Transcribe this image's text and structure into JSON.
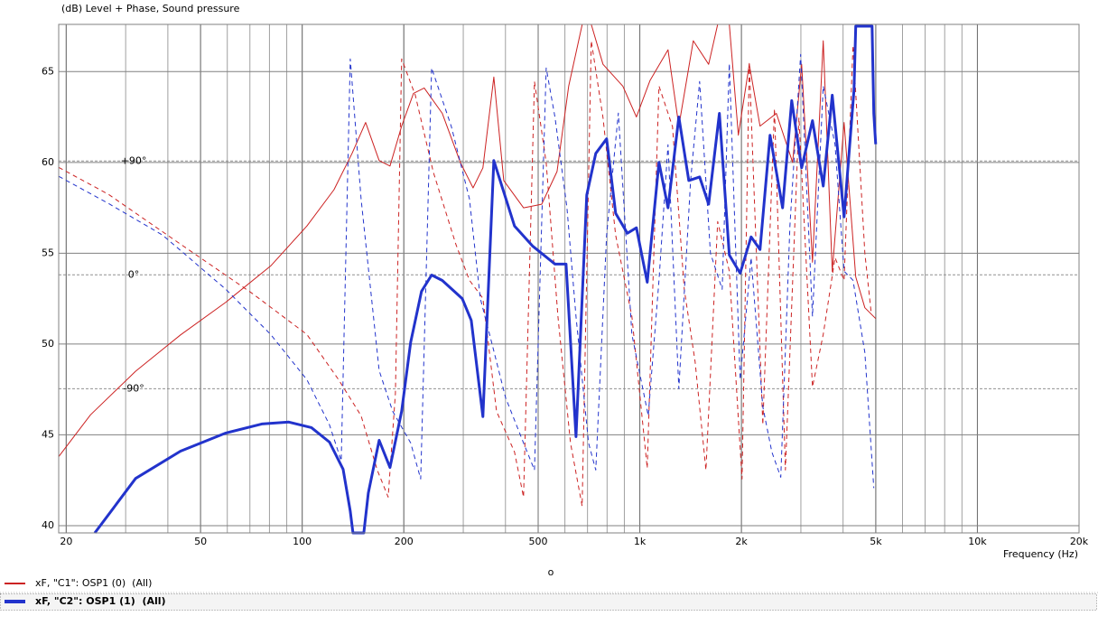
{
  "chart_data": {
    "type": "line",
    "title": "(dB)  Level + Phase, Sound pressure",
    "x_label": "Frequency  (Hz)",
    "footer_mark": "o",
    "x_scale": "log",
    "grid": true,
    "xlim": [
      19,
      20000
    ],
    "xticks": [
      20,
      50,
      100,
      200,
      500,
      {
        "value": 1000,
        "label": "1k"
      },
      {
        "value": 2000,
        "label": "2k"
      },
      {
        "value": 5000,
        "label": "5k"
      },
      {
        "value": 10000,
        "label": "10k"
      },
      {
        "value": 20000,
        "label": "20k"
      }
    ],
    "ylim": [
      39.6,
      67.6
    ],
    "yticks": [
      40,
      45,
      50,
      55,
      60,
      65
    ],
    "y2lim": [
      -204,
      198
    ],
    "y2ticks": [
      {
        "value": 90,
        "label": "+90°"
      },
      {
        "value": 0,
        "label": "0°"
      },
      {
        "value": -90,
        "label": "-90°"
      }
    ],
    "series": [
      {
        "name": "xF, \"C1\": OSP1 (0)  (All)",
        "color": "#cc2222",
        "line_width": 1,
        "level": {
          "x": [
            19,
            23.6,
            32.1,
            43.6,
            59.4,
            80.7,
            103.3,
            124.2,
            140.5,
            154.1,
            169,
            182,
            197,
            213.6,
            229.9,
            260,
            294.1,
            320.7,
            343,
            369.6,
            395.4,
            452.6,
            512,
            568.5,
            615.8,
            675.3,
            718,
            778,
            891,
            977,
            1072,
            1212,
            1305,
            1440,
            1599,
            1701,
            1842,
            1959,
            2110,
            2271,
            2538,
            2835,
            3015,
            3247,
            3494,
            3716,
            4028,
            4362,
            4640,
            4997
          ],
          "values": [
            43.8,
            46.1,
            48.5,
            50.5,
            52.3,
            54.3,
            56.5,
            58.5,
            60.5,
            62.2,
            60.1,
            59.8,
            62.0,
            63.8,
            64.1,
            62.7,
            60.0,
            58.6,
            59.7,
            64.7,
            59.0,
            57.5,
            57.7,
            59.5,
            64.2,
            67.6,
            67.6,
            65.4,
            64.2,
            62.5,
            64.5,
            66.2,
            62.0,
            66.7,
            65.4,
            67.6,
            67.6,
            61.5,
            65.4,
            62.0,
            62.7,
            60.0,
            65.4,
            54.5,
            66.7,
            54.0,
            62.2,
            53.7,
            52.0,
            51.4
          ]
        },
        "phase": {
          "axis": "y2",
          "dash": "5,4",
          "x": [
            19,
            26.7,
            43.6,
            71.4,
            103.3,
            128.2,
            149.4,
            166.9,
            179.8,
            188.9,
            197,
            216.2,
            244.5,
            285.2,
            312.9,
            343,
            376.4,
            425.6,
            452.6,
            487.4,
            528,
            572,
            623.4,
            675,
            718,
            778,
            848,
            947.7,
            1052,
            1140,
            1250,
            1354,
            1458,
            1570,
            1701,
            1842,
            2008,
            2110,
            2314,
            2506,
            2699,
            2960,
            3247,
            3494,
            3787,
            4028,
            4282,
            4640,
            4843
          ],
          "values": [
            85.0,
            63.6,
            24.3,
            -15.0,
            -47.1,
            -82.9,
            -111.4,
            -154.3,
            -175.7,
            -93.6,
            170.7,
            142.1,
            81.4,
            24.3,
            -4.3,
            -18.6,
            -107.9,
            -140.0,
            -175.7,
            152.9,
            88.6,
            -32.9,
            -132.9,
            -182.9,
            185.0,
            124.3,
            31.4,
            -32.9,
            -152.9,
            149.3,
            117.1,
            -11.4,
            -68.6,
            -154.3,
            42.1,
            2.9,
            -161.4,
            167.1,
            -118.6,
            131.4,
            -154.3,
            124.3,
            -88.6,
            -47.1,
            13.6,
            -4.3,
            181.4,
            17.1,
            -29.3
          ]
        }
      },
      {
        "name": "xF, \"C2\": OSP1 (1)  (All)",
        "color": "#2233cc",
        "line_width": 3,
        "level": {
          "x": [
            24.3,
            32.1,
            43.6,
            59.4,
            75.9,
            91.3,
            106.5,
            120.5,
            132.2,
            138.8,
            141.4,
            152.2,
            157,
            169,
            182,
            197,
            209.6,
            225.7,
            241.7,
            260,
            297.8,
            316.7,
            343,
            369.6,
            425.6,
            481,
            561,
            604.6,
            647,
            696.5,
            740.6,
            797.6,
            848,
            918.8,
            977,
            1052,
            1140,
            1212,
            1305,
            1397,
            1504,
            1599,
            1721,
            1842,
            1983,
            2136,
            2271,
            2431,
            2649,
            2818,
            3015,
            3247,
            3494,
            3716,
            4028,
            4310,
            4362,
            4875,
            4934,
            4997
          ],
          "values": [
            39.6,
            42.6,
            44.1,
            45.1,
            45.6,
            45.7,
            45.4,
            44.6,
            43.1,
            40.8,
            39.6,
            39.6,
            41.8,
            44.7,
            43.2,
            46.3,
            50.1,
            52.9,
            53.8,
            53.5,
            52.5,
            51.3,
            46.0,
            60.1,
            56.5,
            55.4,
            54.4,
            54.4,
            44.9,
            58.2,
            60.5,
            61.3,
            57.2,
            56.1,
            56.4,
            53.4,
            60.0,
            57.5,
            62.5,
            59.0,
            59.2,
            57.7,
            62.7,
            54.9,
            53.9,
            55.9,
            55.2,
            61.5,
            57.5,
            63.4,
            59.7,
            62.3,
            58.7,
            63.7,
            57.0,
            64.0,
            67.5,
            67.5,
            62.7,
            61.0
          ]
        },
        "phase": {
          "axis": "y2",
          "dash": "5,4",
          "x": [
            19,
            26.7,
            38.6,
            59.4,
            80.7,
            103.3,
            120.5,
            130.5,
            138.8,
            149.4,
            169,
            185.4,
            209.6,
            224.4,
            241.7,
            276.6,
            312.9,
            336.9,
            364.8,
            400.3,
            452.6,
            487.4,
            528,
            561,
            608.4,
            647,
            705,
            740.6,
            797.6,
            864,
            947.7,
            1059,
            1140,
            1212,
            1305,
            1414,
            1504,
            1619,
            1754,
            1842,
            1983,
            2136,
            2314,
            2461,
            2616,
            2783,
            2996,
            3247,
            3494,
            3787,
            4028,
            4282,
            4640,
            4934
          ],
          "values": [
            77.9,
            56.4,
            31.4,
            -11.4,
            -47.1,
            -82.9,
            -118.6,
            -147.1,
            170.7,
            60.0,
            -75.7,
            -107.9,
            -132.9,
            -161.4,
            163.6,
            117.1,
            60.0,
            -18.6,
            -54.3,
            -97.1,
            -132.9,
            -154.3,
            163.6,
            124.3,
            52.9,
            -32.9,
            -132.9,
            -154.3,
            31.4,
            127.9,
            -47.1,
            -111.4,
            -4.3,
            102.9,
            -90.0,
            74.3,
            152.9,
            17.1,
            -11.4,
            167.1,
            -82.9,
            13.6,
            -104.3,
            -140.0,
            -160.0,
            38.6,
            174.3,
            -32.9,
            149.3,
            102.9,
            2.9,
            -4.3,
            -61.4,
            -168.6
          ]
        }
      }
    ]
  }
}
